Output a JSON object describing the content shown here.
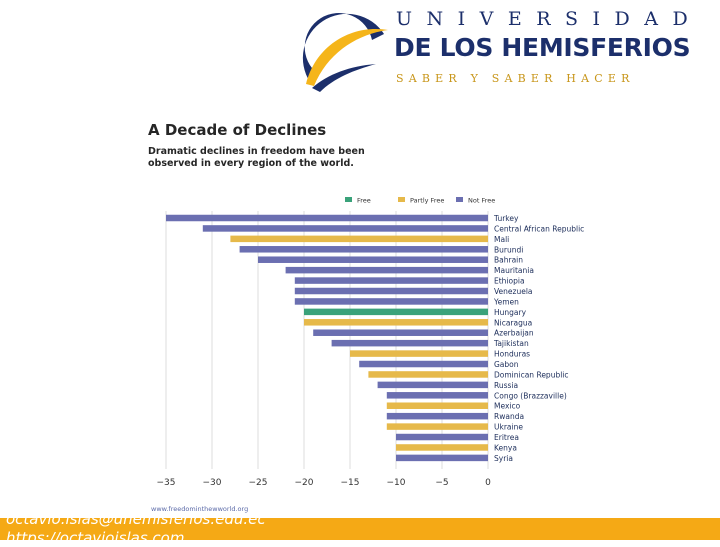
{
  "logo": {
    "line1": "UNIVERSIDAD",
    "line2": "DE LOS HEMISFERIOS",
    "line3": "SABER Y SABER HACER"
  },
  "source": "www.freedominthewworld.org",
  "footer": {
    "email": "octavio.islas@uhemisferios.edu.ec",
    "url": "https://octavioislas.com"
  },
  "colors": {
    "free": "#3aa27a",
    "partly_free": "#e6b94a",
    "not_free": "#6b6fb1",
    "accent": "#f5a915"
  },
  "chart_data": {
    "type": "bar",
    "orientation": "horizontal",
    "title": "A Decade of Declines",
    "subtitle": "Dramatic declines in freedom have been observed in every region of the world.",
    "legend": [
      "Free",
      "Partly Free",
      "Not Free"
    ],
    "legend_position": "top-right",
    "xlim": [
      -36,
      0
    ],
    "xticks": [
      -35,
      -30,
      -25,
      -20,
      -15,
      -10,
      -5,
      0
    ],
    "xtick_labels": [
      "−35",
      "−30",
      "−25",
      "−20",
      "−15",
      "−10",
      "−5",
      "0"
    ],
    "grid": true,
    "categories": [
      "Turkey",
      "Central African Republic",
      "Mali",
      "Burundi",
      "Bahrain",
      "Mauritania",
      "Ethiopia",
      "Venezuela",
      "Yemen",
      "Hungary",
      "Nicaragua",
      "Azerbaijan",
      "Tajikistan",
      "Honduras",
      "Gabon",
      "Dominican Republic",
      "Russia",
      "Congo (Brazzaville)",
      "Mexico",
      "Rwanda",
      "Ukraine",
      "Eritrea",
      "Kenya",
      "Syria"
    ],
    "values": [
      -35,
      -31,
      -28,
      -27,
      -25,
      -22,
      -21,
      -21,
      -21,
      -20,
      -20,
      -19,
      -17,
      -15,
      -14,
      -13,
      -12,
      -11,
      -11,
      -11,
      -11,
      -10,
      -10,
      -10
    ],
    "status": [
      "Not Free",
      "Not Free",
      "Partly Free",
      "Not Free",
      "Not Free",
      "Not Free",
      "Not Free",
      "Not Free",
      "Not Free",
      "Free",
      "Partly Free",
      "Not Free",
      "Not Free",
      "Partly Free",
      "Not Free",
      "Partly Free",
      "Not Free",
      "Not Free",
      "Partly Free",
      "Not Free",
      "Partly Free",
      "Not Free",
      "Partly Free",
      "Not Free"
    ]
  }
}
